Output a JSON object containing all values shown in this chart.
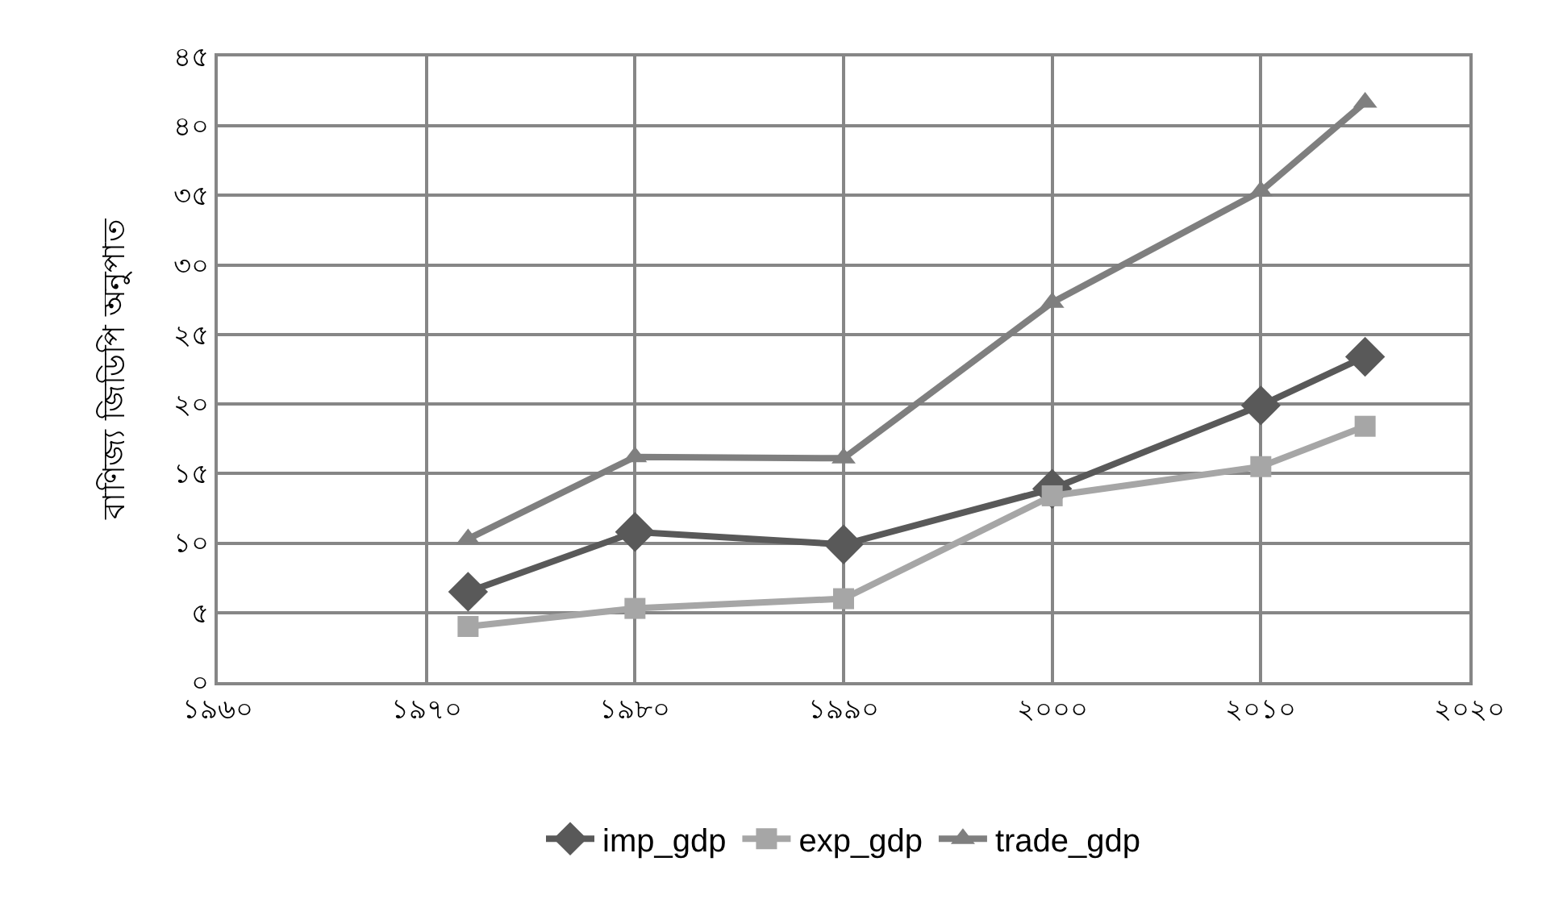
{
  "chart_data": {
    "type": "line",
    "ylabel": "বাণিজ্য জিডিপি অনুপাত",
    "x": [
      1972,
      1980,
      1990,
      2000,
      2010,
      2015
    ],
    "series": [
      {
        "name": "imp_gdp",
        "color": "#595959",
        "marker": "diamond",
        "values": [
          6.5,
          10.8,
          9.9,
          13.9,
          19.9,
          23.4
        ]
      },
      {
        "name": "exp_gdp",
        "color": "#a6a6a6",
        "marker": "square",
        "values": [
          4.0,
          5.3,
          6.0,
          13.4,
          15.5,
          18.4
        ]
      },
      {
        "name": "trade_gdp",
        "color": "#7f7f7f",
        "marker": "triangle",
        "values": [
          10.3,
          16.2,
          16.1,
          27.3,
          35.3,
          41.7
        ]
      }
    ],
    "xlim": [
      1960,
      2020
    ],
    "xticks": [
      {
        "value": 1960,
        "label": "১৯৬০"
      },
      {
        "value": 1970,
        "label": "১৯৭০"
      },
      {
        "value": 1980,
        "label": "১৯৮০"
      },
      {
        "value": 1990,
        "label": "১৯৯০"
      },
      {
        "value": 2000,
        "label": "২০০০"
      },
      {
        "value": 2010,
        "label": "২০১০"
      },
      {
        "value": 2020,
        "label": "২০২০"
      }
    ],
    "ylim": [
      0,
      45
    ],
    "yticks": [
      {
        "value": 0,
        "label": "০"
      },
      {
        "value": 5,
        "label": "৫"
      },
      {
        "value": 10,
        "label": "১০"
      },
      {
        "value": 15,
        "label": "১৫"
      },
      {
        "value": 20,
        "label": "২০"
      },
      {
        "value": 25,
        "label": "২৫"
      },
      {
        "value": 30,
        "label": "৩০"
      },
      {
        "value": 35,
        "label": "৩৫"
      },
      {
        "value": 40,
        "label": "৪০"
      },
      {
        "value": 45,
        "label": "৪৫"
      }
    ],
    "grid": true,
    "legend": "bottom",
    "line_style": "solid"
  }
}
